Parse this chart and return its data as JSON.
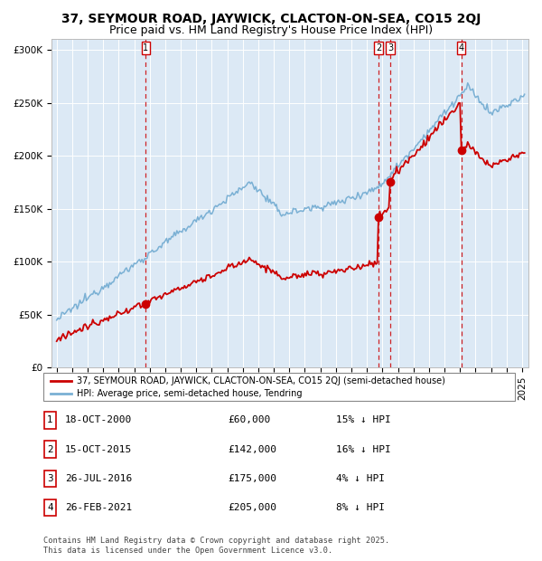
{
  "title": "37, SEYMOUR ROAD, JAYWICK, CLACTON-ON-SEA, CO15 2QJ",
  "subtitle": "Price paid vs. HM Land Registry's House Price Index (HPI)",
  "legend_red": "37, SEYMOUR ROAD, JAYWICK, CLACTON-ON-SEA, CO15 2QJ (semi-detached house)",
  "legend_blue": "HPI: Average price, semi-detached house, Tendring",
  "sales": [
    {
      "num": 1,
      "date": "18-OCT-2000",
      "price": 60000,
      "pct": "15% ↓ HPI"
    },
    {
      "num": 2,
      "date": "15-OCT-2015",
      "price": 142000,
      "pct": "16% ↓ HPI"
    },
    {
      "num": 3,
      "date": "26-JUL-2016",
      "price": 175000,
      "pct": "4% ↓ HPI"
    },
    {
      "num": 4,
      "date": "26-FEB-2021",
      "price": 205000,
      "pct": "8% ↓ HPI"
    }
  ],
  "footer": "Contains HM Land Registry data © Crown copyright and database right 2025.\nThis data is licensed under the Open Government Licence v3.0.",
  "ylim": [
    0,
    310000
  ],
  "yticks": [
    0,
    50000,
    100000,
    150000,
    200000,
    250000,
    300000
  ],
  "ytick_labels": [
    "£0",
    "£50K",
    "£100K",
    "£150K",
    "£200K",
    "£250K",
    "£300K"
  ],
  "bg_color": "#dce9f5",
  "red_line_color": "#cc0000",
  "blue_line_color": "#7ab0d4",
  "vline_color": "#cc0000",
  "title_fontsize": 10,
  "subtitle_fontsize": 9,
  "tick_fontsize": 7.5
}
